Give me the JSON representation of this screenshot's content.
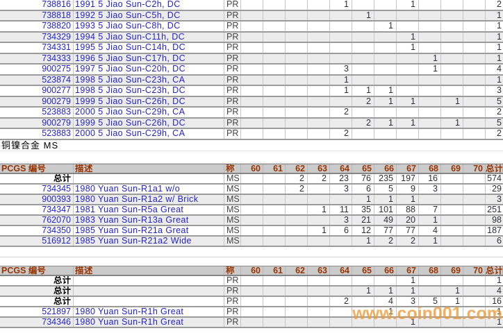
{
  "watermark": "www.coin001.com",
  "section_label": "铜镍合金  MS",
  "grade_columns": [
    "60",
    "61",
    "62",
    "63",
    "64",
    "65",
    "66",
    "67",
    "68",
    "69",
    "70"
  ],
  "header": {
    "number": "PCGS 编号",
    "description": "描述",
    "grade": "称",
    "total": "总计"
  },
  "total_row_label": "总计",
  "top_table": {
    "rows": [
      {
        "number": "738816",
        "description": "1991 5 Jiao Sun-C2h, DC",
        "grade_type": "PR",
        "counts": {
          "64": "1",
          "67": "1"
        },
        "total": "2"
      },
      {
        "number": "738818",
        "description": "1992 5 Jiao Sun-C5h, DC",
        "grade_type": "PR",
        "counts": {
          "65": "1"
        },
        "total": "1"
      },
      {
        "number": "738820",
        "description": "1993 5 Jiao Sun-C8h, DC",
        "grade_type": "PR",
        "counts": {
          "66": "1"
        },
        "total": "1"
      },
      {
        "number": "734329",
        "description": "1994 5 Jiao Sun-C11h, DC",
        "grade_type": "PR",
        "counts": {
          "67": "1"
        },
        "total": "1"
      },
      {
        "number": "734331",
        "description": "1995 5 Jiao Sun-C14h, DC",
        "grade_type": "PR",
        "counts": {
          "67": "1"
        },
        "total": "1"
      },
      {
        "number": "734333",
        "description": "1996 5 Jiao Sun-C17h, DC",
        "grade_type": "PR",
        "counts": {
          "68": "1"
        },
        "total": "1"
      },
      {
        "number": "900275",
        "description": "1997 5 Jiao Sun-C20h, DC",
        "grade_type": "PR",
        "counts": {
          "64": "3",
          "68": "1"
        },
        "total": "4"
      },
      {
        "number": "523874",
        "description": "1998 5 Jiao Sun-C23h, CA",
        "grade_type": "PR",
        "counts": {
          "64": "1"
        },
        "total": "1"
      },
      {
        "number": "900277",
        "description": "1998 5 Jiao Sun-C23h, DC",
        "grade_type": "PR",
        "counts": {
          "64": "1",
          "65": "1",
          "66": "1"
        },
        "total": "3"
      },
      {
        "number": "900279",
        "description": "1999 5 Jiao Sun-C26h, DC",
        "grade_type": "PR",
        "counts": {
          "65": "2",
          "66": "1",
          "67": "1",
          "69": "1"
        },
        "total": "5"
      },
      {
        "number": "523883",
        "description": "2000 5 Jiao Sun-C29h, CA",
        "grade_type": "PR",
        "counts": {
          "64": "2"
        },
        "total": "2"
      },
      {
        "number": "900279",
        "description": "1999 5 Jiao Sun-C26h, DC",
        "grade_type": "PR",
        "counts": {
          "65": "2",
          "66": "1",
          "67": "1",
          "69": "1"
        },
        "total": "5"
      },
      {
        "number": "523883",
        "description": "2000 5 Jiao Sun-C29h, CA",
        "grade_type": "PR",
        "counts": {
          "64": "2"
        },
        "total": "2"
      }
    ]
  },
  "ms_table": {
    "rows": [
      {
        "label": "总计",
        "grade_type": "MS",
        "counts": {
          "62": "2",
          "63": "2",
          "64": "23",
          "65": "76",
          "66": "235",
          "67": "197",
          "68": "16"
        },
        "total": "574"
      },
      {
        "number": "734345",
        "description": "1980 Yuan Sun-R1a1 w/o",
        "grade_type": "MS",
        "counts": {
          "62": "2",
          "64": "3",
          "65": "6",
          "66": "5",
          "67": "9",
          "68": "3"
        },
        "total": "29"
      },
      {
        "number": "900393",
        "description": "1980 Yuan Sun-R1a2 w/ Brick",
        "grade_type": "MS",
        "counts": {
          "65": "1",
          "66": "1",
          "67": "1"
        },
        "total": "3"
      },
      {
        "number": "734347",
        "description": "1981 Yuan Sun-R5a Great",
        "grade_type": "MS",
        "counts": {
          "63": "1",
          "64": "11",
          "65": "35",
          "66": "101",
          "67": "88",
          "68": "7"
        },
        "total": "251"
      },
      {
        "number": "762070",
        "description": "1983 Yuan Sun-R13a Great",
        "grade_type": "MS",
        "counts": {
          "64": "3",
          "65": "21",
          "66": "49",
          "67": "20",
          "68": "1"
        },
        "total": "98"
      },
      {
        "number": "734350",
        "description": "1985 Yuan Sun-R21a Great",
        "grade_type": "MS",
        "counts": {
          "63": "1",
          "64": "6",
          "65": "12",
          "66": "77",
          "67": "77",
          "68": "4"
        },
        "total": "187"
      },
      {
        "number": "516912",
        "description": "1985 Yuan Sun-R21a2 Wide",
        "grade_type": "MS",
        "counts": {
          "65": "1",
          "66": "2",
          "67": "2",
          "68": "1"
        },
        "total": "6"
      }
    ]
  },
  "pr_table": {
    "rows": [
      {
        "label": "总计",
        "grade_type": "PR",
        "counts": {
          "67": "1"
        },
        "total": "1"
      },
      {
        "label": "总计",
        "grade_type": "PR",
        "counts": {
          "65": "1",
          "66": "1",
          "67": "1",
          "69": "1"
        },
        "total": "4"
      },
      {
        "label": "总计",
        "grade_type": "PR",
        "counts": {
          "64": "2",
          "66": "4",
          "67": "3",
          "68": "5",
          "69": "1"
        },
        "total": "16"
      },
      {
        "number": "521897",
        "description": "1980 Yuan Sun-R1h Great",
        "grade_type": "PR",
        "counts": {
          "66": "1"
        },
        "total": "1"
      },
      {
        "number": "734346",
        "description": "1980 Yuan Sun-R1h Great",
        "grade_type": "PR",
        "counts": {
          "67": "1"
        },
        "total": "1"
      }
    ]
  }
}
